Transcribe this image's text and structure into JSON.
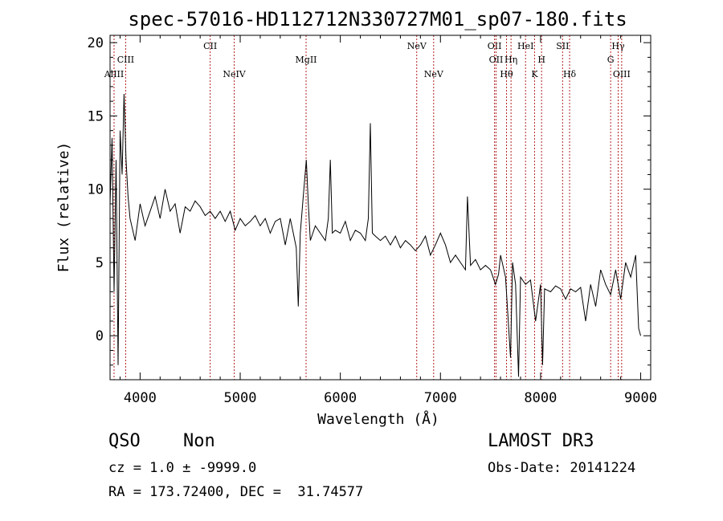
{
  "chart_data": {
    "type": "line",
    "title": "spec-57016-HD112712N330727M01_sp07-180.fits",
    "xlabel": "Wavelength (Å)",
    "ylabel": "Flux (relative)",
    "xlim": [
      3700,
      9100
    ],
    "ylim": [
      -3,
      20.5
    ],
    "xticks": [
      4000,
      5000,
      6000,
      7000,
      8000,
      9000
    ],
    "yticks": [
      0,
      5,
      10,
      15,
      20
    ],
    "grid": false,
    "series": [
      {
        "x": [
          3700,
          3720,
          3740,
          3760,
          3780,
          3800,
          3820,
          3840,
          3860,
          3880,
          3900,
          3950,
          4000,
          4050,
          4100,
          4150,
          4200,
          4250,
          4300,
          4350,
          4400,
          4450,
          4500,
          4550,
          4600,
          4650,
          4700,
          4750,
          4800,
          4850,
          4900,
          4950,
          5000,
          5050,
          5100,
          5150,
          5200,
          5250,
          5300,
          5350,
          5400,
          5450,
          5500,
          5530,
          5560,
          5580,
          5600,
          5630,
          5660,
          5680,
          5700,
          5750,
          5800,
          5850,
          5880,
          5900,
          5920,
          5950,
          6000,
          6050,
          6100,
          6150,
          6200,
          6250,
          6280,
          6300,
          6320,
          6350,
          6400,
          6450,
          6500,
          6550,
          6600,
          6650,
          6700,
          6750,
          6800,
          6850,
          6900,
          6950,
          7000,
          7050,
          7100,
          7150,
          7200,
          7250,
          7270,
          7300,
          7350,
          7400,
          7450,
          7500,
          7550,
          7580,
          7600,
          7650,
          7700,
          7720,
          7750,
          7780,
          7800,
          7850,
          7900,
          7950,
          8000,
          8020,
          8040,
          8100,
          8150,
          8200,
          8250,
          8300,
          8350,
          8400,
          8450,
          8500,
          8550,
          8600,
          8650,
          8700,
          8750,
          8800,
          8850,
          8900,
          8950,
          8980,
          9000
        ],
        "y": [
          9.0,
          13.5,
          3.0,
          12.0,
          -2.0,
          14.0,
          11.0,
          16.5,
          12.0,
          9.5,
          8.0,
          6.5,
          9.0,
          7.5,
          8.5,
          9.5,
          8.0,
          10.0,
          8.5,
          9.0,
          7.0,
          8.8,
          8.5,
          9.2,
          8.8,
          8.2,
          8.5,
          8.0,
          8.5,
          7.8,
          8.5,
          7.2,
          8.0,
          7.5,
          7.8,
          8.2,
          7.5,
          8.0,
          7.0,
          7.8,
          8.0,
          6.2,
          8.0,
          7.0,
          6.0,
          2.0,
          7.0,
          9.5,
          12.0,
          9.0,
          6.5,
          7.5,
          7.0,
          6.5,
          8.0,
          12.0,
          7.0,
          7.2,
          7.0,
          7.8,
          6.5,
          7.2,
          7.0,
          6.5,
          8.0,
          14.5,
          7.0,
          6.8,
          6.5,
          6.8,
          6.2,
          6.8,
          6.0,
          6.5,
          6.2,
          5.8,
          6.2,
          6.8,
          5.5,
          6.2,
          7.0,
          6.2,
          5.0,
          5.5,
          5.0,
          4.5,
          9.5,
          4.8,
          5.2,
          4.5,
          4.8,
          4.5,
          3.5,
          4.2,
          5.5,
          4.0,
          -1.5,
          5.0,
          3.5,
          -2.8,
          4.0,
          3.5,
          3.8,
          1.0,
          3.5,
          -2.0,
          3.2,
          3.0,
          3.4,
          3.2,
          2.5,
          3.2,
          3.0,
          3.3,
          1.0,
          3.5,
          2.0,
          4.5,
          3.5,
          2.8,
          4.5,
          2.5,
          5.0,
          4.0,
          5.5,
          0.5,
          0.0
        ]
      }
    ],
    "line_markers": [
      {
        "name": "AlIII",
        "x": 3740,
        "row": 3,
        "label_visible": true
      },
      {
        "name": "CIII",
        "x": 3856,
        "row": 2,
        "label_visible": true
      },
      {
        "name": "CII",
        "x": 4700,
        "row": 1,
        "label_visible": true
      },
      {
        "name": "NeIV",
        "x": 4940,
        "row": 3,
        "label_visible": true
      },
      {
        "name": "MgII",
        "x": 5658,
        "row": 2,
        "label_visible": true
      },
      {
        "name": "NeV",
        "x": 6763,
        "row": 1,
        "label_visible": true
      },
      {
        "name": "NeV",
        "x": 6932,
        "row": 3,
        "label_visible": true
      },
      {
        "name": "OII",
        "x": 7540,
        "row": 1,
        "label_visible": true
      },
      {
        "name": "OII",
        "x": 7555,
        "row": 2,
        "label_visible": true
      },
      {
        "name": "Hθ",
        "x": 7660,
        "row": 3,
        "label_visible": true
      },
      {
        "name": "Hη",
        "x": 7705,
        "row": 2,
        "label_visible": true
      },
      {
        "name": "HeI",
        "x": 7850,
        "row": 1,
        "label_visible": true
      },
      {
        "name": "K",
        "x": 7940,
        "row": 3,
        "label_visible": true
      },
      {
        "name": "H",
        "x": 8010,
        "row": 2,
        "label_visible": true
      },
      {
        "name": "SII",
        "x": 8220,
        "row": 1,
        "label_visible": true
      },
      {
        "name": "Hδ",
        "x": 8290,
        "row": 3,
        "label_visible": true
      },
      {
        "name": "G",
        "x": 8700,
        "row": 2,
        "label_visible": true
      },
      {
        "name": "Hγ",
        "x": 8775,
        "row": 1,
        "label_visible": true
      },
      {
        "name": "OIII",
        "x": 8810,
        "row": 3,
        "label_visible": true
      }
    ],
    "colors": {
      "spectrum": "#000000",
      "line_marker": "#b22222",
      "axes": "#000000",
      "background": "#ffffff"
    }
  },
  "info": {
    "class": "QSO",
    "subclass": "Non",
    "cz": "cz = 1.0 ± -9999.0",
    "radec": "RA = 173.72400, DEC =  31.74577",
    "survey": "LAMOST DR3",
    "obsdate": "Obs-Date: 20141224"
  }
}
